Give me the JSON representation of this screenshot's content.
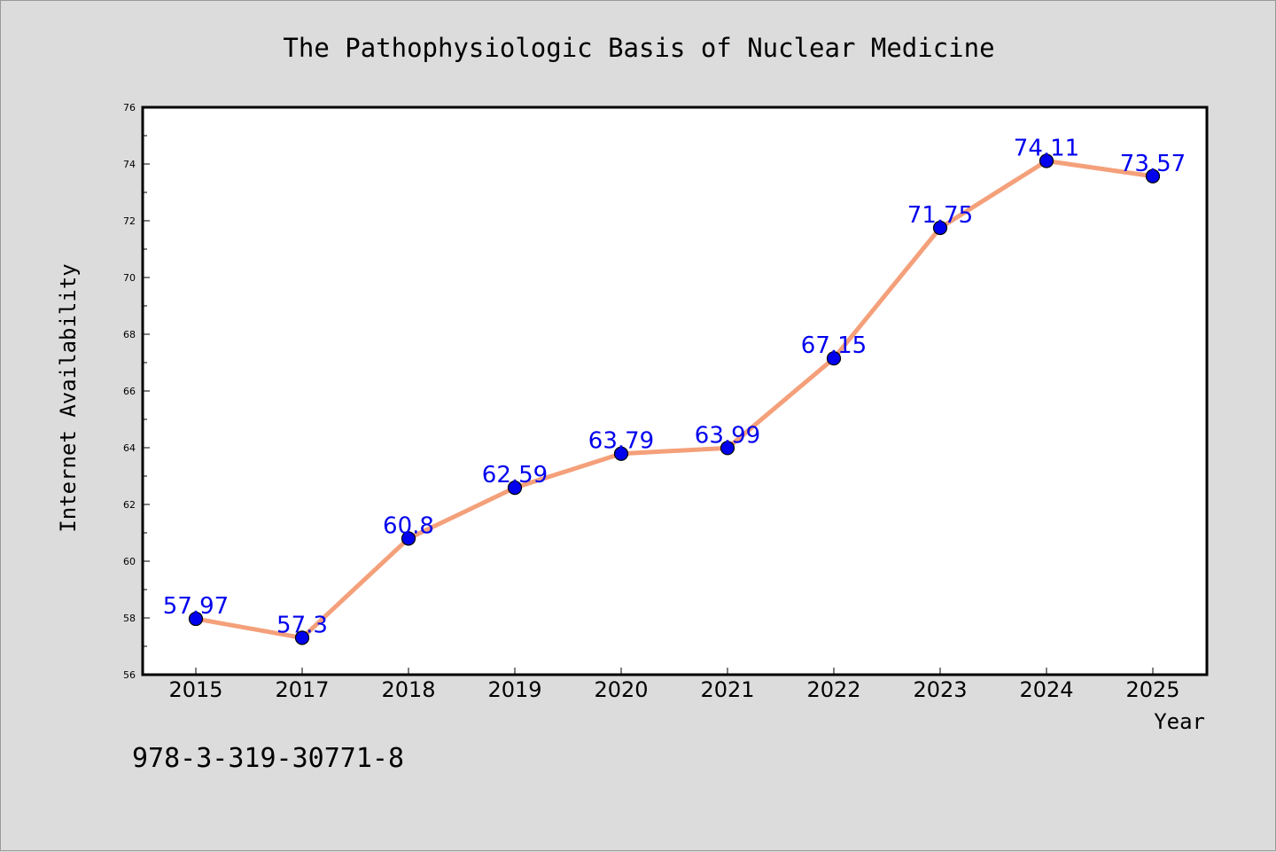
{
  "chart_data": {
    "type": "line",
    "title": "The Pathophysiologic Basis of Nuclear Medicine",
    "xlabel": "Year",
    "ylabel": "Internet Availability",
    "categories": [
      "2015",
      "2017",
      "2018",
      "2019",
      "2020",
      "2021",
      "2022",
      "2023",
      "2024",
      "2025"
    ],
    "series": [
      {
        "values": [
          57.97,
          57.3,
          60.8,
          62.59,
          63.79,
          63.99,
          67.15,
          71.75,
          74.11,
          73.57
        ],
        "labels": [
          "57.97",
          "57.3",
          "60.8",
          "62.59",
          "63.79",
          "63.99",
          "67.15",
          "71.75",
          "74.11",
          "73.57"
        ],
        "line_color": "#f4a07a",
        "marker_color": "#0000ee",
        "label_color": "#0000ee"
      }
    ],
    "ylim": [
      56,
      76
    ],
    "yticks": [
      "56",
      "58",
      "60",
      "62",
      "64",
      "66",
      "68",
      "70",
      "72",
      "74",
      "76"
    ],
    "grid": false,
    "legend": "none"
  },
  "footnote": "978-3-319-30771-8",
  "colors": {
    "background": "#dcdcdc",
    "plot_area": "#ffffff"
  }
}
